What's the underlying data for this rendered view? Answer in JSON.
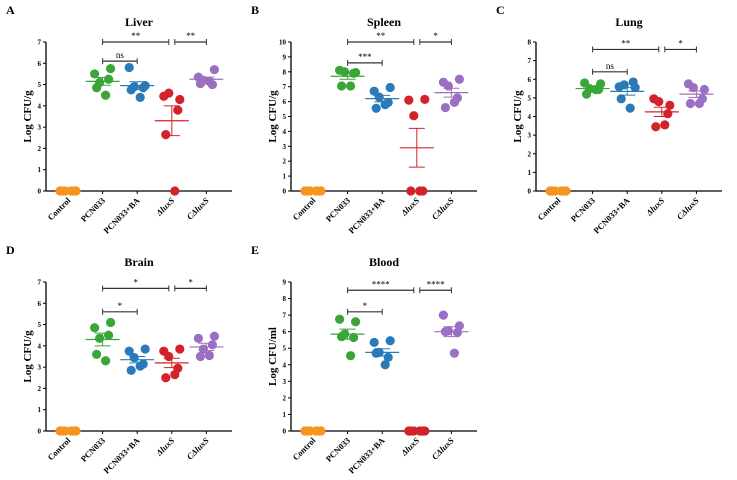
{
  "chart_data": [
    {
      "panel": "A",
      "type": "scatter",
      "title": "Liver",
      "ylabel": "Log CFU/g",
      "ylim": [
        0,
        7
      ],
      "yticks": [
        0,
        1,
        2,
        3,
        4,
        5,
        6,
        7
      ],
      "grid": false,
      "categories": [
        "Control",
        "PCN033",
        "PCN033+BA",
        "ΔluxS",
        "CΔluxS"
      ],
      "colors": [
        "#F7941E",
        "#3AA639",
        "#2A7AB9",
        "#D2232A",
        "#9B6FC2"
      ],
      "values": [
        [
          0,
          0,
          0,
          0,
          0,
          0
        ],
        [
          5.5,
          5.75,
          5.1,
          5.25,
          4.85,
          4.5
        ],
        [
          5.8,
          4.95,
          4.9,
          4.85,
          4.75,
          4.4
        ],
        [
          4.45,
          4.3,
          4.6,
          3.8,
          2.65,
          0
        ],
        [
          5.35,
          5.7,
          5.2,
          5.0,
          5.05,
          5.15
        ]
      ],
      "mean": [
        0,
        5.15,
        4.95,
        3.3,
        5.25
      ],
      "sem": [
        0,
        0.18,
        0.18,
        0.7,
        0.1
      ],
      "comparisons": [
        {
          "from": 1,
          "to": 3,
          "y": 7,
          "label": "**"
        },
        {
          "from": 3,
          "to": 4,
          "y": 7,
          "label": "**"
        },
        {
          "from": 1,
          "to": 2,
          "y": 6.1,
          "label": "ns"
        }
      ]
    },
    {
      "panel": "B",
      "type": "scatter",
      "title": "Spleen",
      "ylabel": "Log CFU/g",
      "ylim": [
        0,
        10
      ],
      "yticks": [
        0,
        1,
        2,
        3,
        4,
        5,
        6,
        7,
        8,
        9,
        10
      ],
      "grid": false,
      "categories": [
        "Control",
        "PCN033",
        "PCN033+BA",
        "ΔluxS",
        "CΔluxS"
      ],
      "colors": [
        "#F7941E",
        "#3AA639",
        "#2A7AB9",
        "#D2232A",
        "#9B6FC2"
      ],
      "values": [
        [
          0,
          0,
          0,
          0,
          0,
          0
        ],
        [
          8.1,
          7.95,
          8.0,
          7.9,
          7.05,
          7.05
        ],
        [
          6.7,
          6.95,
          6.3,
          5.95,
          5.55,
          5.8
        ],
        [
          6.1,
          6.15,
          5.05,
          0,
          0,
          0
        ],
        [
          7.3,
          7.5,
          7.05,
          6.25,
          5.6,
          5.95
        ]
      ],
      "mean": [
        0,
        7.7,
        6.2,
        2.9,
        6.6
      ],
      "sem": [
        0,
        0.2,
        0.22,
        1.3,
        0.3
      ],
      "comparisons": [
        {
          "from": 1,
          "to": 3,
          "y": 10,
          "label": "**"
        },
        {
          "from": 3,
          "to": 4,
          "y": 10,
          "label": "*"
        },
        {
          "from": 1,
          "to": 2,
          "y": 8.6,
          "label": "***"
        }
      ]
    },
    {
      "panel": "C",
      "type": "scatter",
      "title": "Lung",
      "ylabel": "Log CFU/g",
      "ylim": [
        0,
        8
      ],
      "yticks": [
        0,
        1,
        2,
        3,
        4,
        5,
        6,
        7,
        8
      ],
      "grid": false,
      "categories": [
        "Control",
        "PCN033",
        "PCN033+BA",
        "ΔluxS",
        "CΔluxS"
      ],
      "colors": [
        "#F7941E",
        "#3AA639",
        "#2A7AB9",
        "#D2232A",
        "#9B6FC2"
      ],
      "values": [
        [
          0,
          0,
          0,
          0,
          0,
          0
        ],
        [
          5.8,
          5.75,
          5.5,
          5.45,
          5.2,
          5.45
        ],
        [
          5.6,
          5.55,
          5.7,
          5.85,
          4.95,
          4.45
        ],
        [
          4.95,
          4.6,
          4.8,
          4.15,
          3.45,
          3.55
        ],
        [
          5.75,
          5.45,
          5.55,
          4.95,
          4.7,
          4.7
        ]
      ],
      "mean": [
        0,
        5.5,
        5.35,
        4.25,
        5.2
      ],
      "sem": [
        0,
        0.1,
        0.2,
        0.25,
        0.17
      ],
      "comparisons": [
        {
          "from": 1,
          "to": 3,
          "y": 7.6,
          "label": "**"
        },
        {
          "from": 3,
          "to": 4,
          "y": 7.6,
          "label": "*"
        },
        {
          "from": 1,
          "to": 2,
          "y": 6.4,
          "label": "ns"
        }
      ]
    },
    {
      "panel": "D",
      "type": "scatter",
      "title": "Brain",
      "ylabel": "Log CFU/g",
      "ylim": [
        0,
        7
      ],
      "yticks": [
        0,
        1,
        2,
        3,
        4,
        5,
        6,
        7
      ],
      "grid": false,
      "categories": [
        "Control",
        "PCN033",
        "PCN033+BA",
        "ΔluxS",
        "CΔluxS"
      ],
      "colors": [
        "#F7941E",
        "#3AA639",
        "#2A7AB9",
        "#D2232A",
        "#9B6FC2"
      ],
      "values": [
        [
          0,
          0,
          0,
          0,
          0,
          0
        ],
        [
          4.85,
          5.1,
          4.35,
          4.5,
          3.6,
          3.3
        ],
        [
          3.75,
          3.85,
          3.45,
          3.15,
          2.85,
          3.05
        ],
        [
          3.75,
          3.85,
          3.5,
          2.95,
          2.5,
          2.65
        ],
        [
          4.35,
          4.45,
          3.85,
          4.05,
          3.5,
          3.55
        ]
      ],
      "mean": [
        0,
        4.3,
        3.35,
        3.2,
        3.95
      ],
      "sem": [
        0,
        0.3,
        0.15,
        0.22,
        0.17
      ],
      "comparisons": [
        {
          "from": 1,
          "to": 3,
          "y": 6.7,
          "label": "*"
        },
        {
          "from": 3,
          "to": 4,
          "y": 6.7,
          "label": "*"
        },
        {
          "from": 1,
          "to": 2,
          "y": 5.6,
          "label": "*"
        }
      ]
    },
    {
      "panel": "E",
      "type": "scatter",
      "title": "Blood",
      "ylabel": "Log CFU/ml",
      "ylim": [
        0,
        9
      ],
      "yticks": [
        0,
        1,
        2,
        3,
        4,
        5,
        6,
        7,
        8,
        9
      ],
      "grid": false,
      "categories": [
        "Control",
        "PCN033",
        "PCN033+BA",
        "ΔluxS",
        "CΔluxS"
      ],
      "colors": [
        "#F7941E",
        "#3AA639",
        "#2A7AB9",
        "#D2232A",
        "#9B6FC2"
      ],
      "values": [
        [
          0,
          0,
          0,
          0,
          0,
          0
        ],
        [
          6.75,
          6.6,
          5.85,
          5.65,
          5.7,
          4.55
        ],
        [
          5.35,
          5.45,
          4.75,
          4.45,
          4.7,
          4.0
        ],
        [
          0,
          0,
          0,
          0,
          0,
          0
        ],
        [
          7.0,
          6.35,
          6.05,
          5.95,
          6.0,
          4.7
        ]
      ],
      "mean": [
        0,
        5.85,
        4.75,
        0,
        6.0
      ],
      "sem": [
        0,
        0.3,
        0.22,
        0,
        0.3
      ],
      "comparisons": [
        {
          "from": 1,
          "to": 3,
          "y": 8.5,
          "label": "****"
        },
        {
          "from": 3,
          "to": 4,
          "y": 8.5,
          "label": "****"
        },
        {
          "from": 1,
          "to": 2,
          "y": 7.2,
          "label": "*"
        }
      ]
    }
  ]
}
